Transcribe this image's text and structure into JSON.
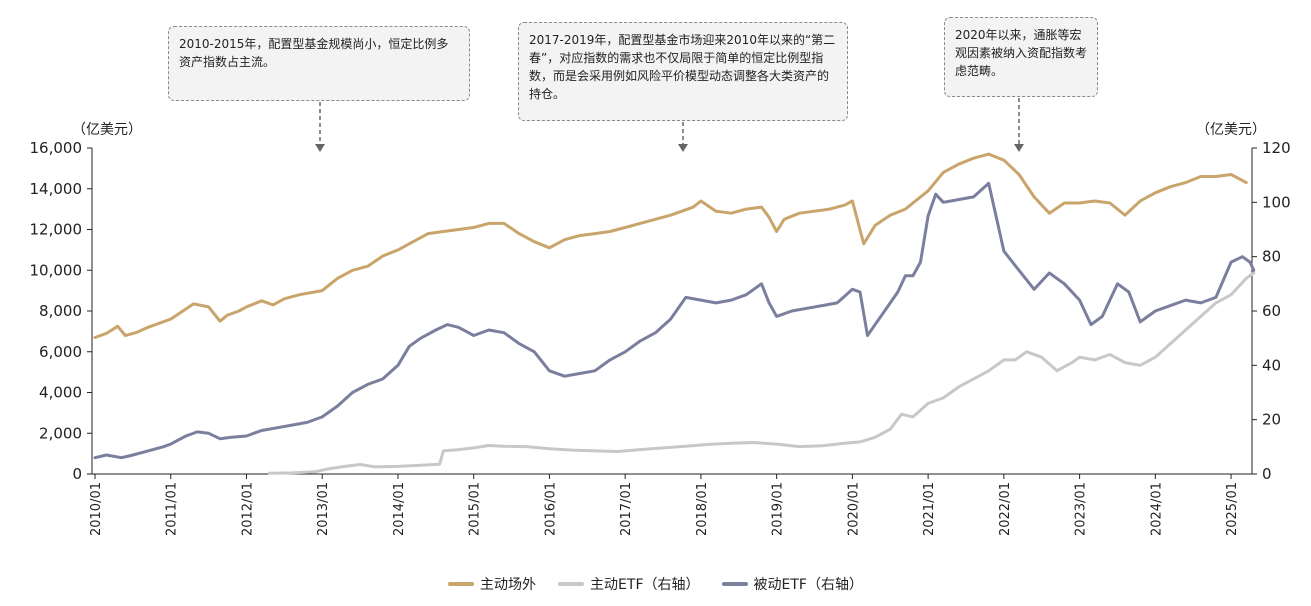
{
  "chart_data": {
    "type": "line",
    "left_axis_unit": "（亿美元）",
    "right_axis_unit": "（亿美元）",
    "left_ylim": [
      0,
      16000
    ],
    "left_ticks": [
      "0",
      "2,000",
      "4,000",
      "6,000",
      "8,000",
      "10,000",
      "12,000",
      "14,000",
      "16,000"
    ],
    "right_ylim": [
      0,
      120
    ],
    "right_ticks": [
      "0",
      "20",
      "40",
      "60",
      "80",
      "100",
      "120"
    ],
    "x_ticks": [
      "2010/01",
      "2011/01",
      "2012/01",
      "2013/01",
      "2014/01",
      "2015/01",
      "2016/01",
      "2017/01",
      "2018/01",
      "2019/01",
      "2020/01",
      "2021/01",
      "2022/01",
      "2023/01",
      "2024/01",
      "2025/01"
    ],
    "grid": false,
    "legend_position": "bottom",
    "series": [
      {
        "name": "主动场外",
        "axis": "left",
        "color": "#C9A46B",
        "points": [
          [
            2010.0,
            6700
          ],
          [
            2010.15,
            6900
          ],
          [
            2010.3,
            7250
          ],
          [
            2010.4,
            6800
          ],
          [
            2010.55,
            6950
          ],
          [
            2010.7,
            7200
          ],
          [
            2010.85,
            7400
          ],
          [
            2011.0,
            7600
          ],
          [
            2011.2,
            8100
          ],
          [
            2011.3,
            8350
          ],
          [
            2011.5,
            8200
          ],
          [
            2011.65,
            7500
          ],
          [
            2011.75,
            7800
          ],
          [
            2011.9,
            8000
          ],
          [
            2012.0,
            8200
          ],
          [
            2012.2,
            8500
          ],
          [
            2012.35,
            8300
          ],
          [
            2012.5,
            8600
          ],
          [
            2012.7,
            8800
          ],
          [
            2013.0,
            9000
          ],
          [
            2013.2,
            9600
          ],
          [
            2013.4,
            10000
          ],
          [
            2013.6,
            10200
          ],
          [
            2013.8,
            10700
          ],
          [
            2014.0,
            11000
          ],
          [
            2014.2,
            11400
          ],
          [
            2014.4,
            11800
          ],
          [
            2014.6,
            11900
          ],
          [
            2014.8,
            12000
          ],
          [
            2015.0,
            12100
          ],
          [
            2015.2,
            12300
          ],
          [
            2015.4,
            12300
          ],
          [
            2015.6,
            11800
          ],
          [
            2015.8,
            11400
          ],
          [
            2016.0,
            11100
          ],
          [
            2016.2,
            11500
          ],
          [
            2016.4,
            11700
          ],
          [
            2016.6,
            11800
          ],
          [
            2016.8,
            11900
          ],
          [
            2017.0,
            12100
          ],
          [
            2017.3,
            12400
          ],
          [
            2017.6,
            12700
          ],
          [
            2017.9,
            13100
          ],
          [
            2018.0,
            13400
          ],
          [
            2018.2,
            12900
          ],
          [
            2018.4,
            12800
          ],
          [
            2018.6,
            13000
          ],
          [
            2018.8,
            13100
          ],
          [
            2018.9,
            12600
          ],
          [
            2019.0,
            11900
          ],
          [
            2019.1,
            12500
          ],
          [
            2019.3,
            12800
          ],
          [
            2019.5,
            12900
          ],
          [
            2019.7,
            13000
          ],
          [
            2019.9,
            13200
          ],
          [
            2020.0,
            13400
          ],
          [
            2020.15,
            11300
          ],
          [
            2020.3,
            12200
          ],
          [
            2020.5,
            12700
          ],
          [
            2020.7,
            13000
          ],
          [
            2020.9,
            13600
          ],
          [
            2021.0,
            13900
          ],
          [
            2021.2,
            14800
          ],
          [
            2021.4,
            15200
          ],
          [
            2021.6,
            15500
          ],
          [
            2021.8,
            15700
          ],
          [
            2022.0,
            15400
          ],
          [
            2022.2,
            14700
          ],
          [
            2022.4,
            13600
          ],
          [
            2022.6,
            12800
          ],
          [
            2022.8,
            13300
          ],
          [
            2023.0,
            13300
          ],
          [
            2023.2,
            13400
          ],
          [
            2023.4,
            13300
          ],
          [
            2023.6,
            12700
          ],
          [
            2023.8,
            13400
          ],
          [
            2024.0,
            13800
          ],
          [
            2024.2,
            14100
          ],
          [
            2024.4,
            14300
          ],
          [
            2024.6,
            14600
          ],
          [
            2024.8,
            14600
          ],
          [
            2025.0,
            14700
          ],
          [
            2025.2,
            14300
          ]
        ]
      },
      {
        "name": "主动ETF（右轴）",
        "axis": "right",
        "color": "#C8C8C8",
        "points": [
          [
            2012.3,
            0.3
          ],
          [
            2012.6,
            0.4
          ],
          [
            2012.9,
            0.8
          ],
          [
            2013.1,
            2
          ],
          [
            2013.3,
            2.8
          ],
          [
            2013.5,
            3.5
          ],
          [
            2013.7,
            2.6
          ],
          [
            2014.0,
            2.8
          ],
          [
            2014.3,
            3.2
          ],
          [
            2014.55,
            3.6
          ],
          [
            2014.6,
            8.5
          ],
          [
            2014.8,
            9
          ],
          [
            2015.0,
            9.6
          ],
          [
            2015.2,
            10.5
          ],
          [
            2015.4,
            10.2
          ],
          [
            2015.7,
            10.1
          ],
          [
            2016.0,
            9.3
          ],
          [
            2016.3,
            8.8
          ],
          [
            2016.6,
            8.5
          ],
          [
            2016.9,
            8.3
          ],
          [
            2017.2,
            9
          ],
          [
            2017.5,
            9.6
          ],
          [
            2017.8,
            10.2
          ],
          [
            2018.1,
            10.9
          ],
          [
            2018.4,
            11.3
          ],
          [
            2018.7,
            11.6
          ],
          [
            2019.0,
            11
          ],
          [
            2019.3,
            10.1
          ],
          [
            2019.6,
            10.4
          ],
          [
            2019.9,
            11.3
          ],
          [
            2020.1,
            11.8
          ],
          [
            2020.3,
            13.5
          ],
          [
            2020.5,
            16.5
          ],
          [
            2020.65,
            22
          ],
          [
            2020.8,
            21
          ],
          [
            2021.0,
            26
          ],
          [
            2021.2,
            28
          ],
          [
            2021.4,
            32
          ],
          [
            2021.6,
            35
          ],
          [
            2021.8,
            38
          ],
          [
            2022.0,
            42
          ],
          [
            2022.15,
            42
          ],
          [
            2022.3,
            45
          ],
          [
            2022.5,
            43
          ],
          [
            2022.7,
            38
          ],
          [
            2022.9,
            41
          ],
          [
            2023.0,
            43
          ],
          [
            2023.2,
            42
          ],
          [
            2023.4,
            44
          ],
          [
            2023.6,
            41
          ],
          [
            2023.8,
            40
          ],
          [
            2024.0,
            43
          ],
          [
            2024.2,
            48
          ],
          [
            2024.4,
            53
          ],
          [
            2024.6,
            58
          ],
          [
            2024.8,
            63
          ],
          [
            2025.0,
            66
          ],
          [
            2025.2,
            72
          ],
          [
            2025.3,
            74
          ]
        ]
      },
      {
        "name": "被动ETF（右轴）",
        "axis": "right",
        "color": "#7B7F9E",
        "points": [
          [
            2010.0,
            6
          ],
          [
            2010.15,
            7
          ],
          [
            2010.35,
            6
          ],
          [
            2010.5,
            7
          ],
          [
            2010.7,
            8.5
          ],
          [
            2010.9,
            10
          ],
          [
            2011.0,
            11
          ],
          [
            2011.2,
            14
          ],
          [
            2011.35,
            15.5
          ],
          [
            2011.5,
            15
          ],
          [
            2011.65,
            13
          ],
          [
            2011.8,
            13.5
          ],
          [
            2012.0,
            14
          ],
          [
            2012.2,
            16
          ],
          [
            2012.4,
            17
          ],
          [
            2012.6,
            18
          ],
          [
            2012.8,
            19
          ],
          [
            2013.0,
            21
          ],
          [
            2013.2,
            25
          ],
          [
            2013.4,
            30
          ],
          [
            2013.6,
            33
          ],
          [
            2013.8,
            35
          ],
          [
            2014.0,
            40
          ],
          [
            2014.15,
            47
          ],
          [
            2014.3,
            50
          ],
          [
            2014.5,
            53
          ],
          [
            2014.65,
            55
          ],
          [
            2014.8,
            54
          ],
          [
            2015.0,
            51
          ],
          [
            2015.2,
            53
          ],
          [
            2015.4,
            52
          ],
          [
            2015.6,
            48
          ],
          [
            2015.8,
            45
          ],
          [
            2016.0,
            38
          ],
          [
            2016.2,
            36
          ],
          [
            2016.4,
            37
          ],
          [
            2016.6,
            38
          ],
          [
            2016.8,
            42
          ],
          [
            2017.0,
            45
          ],
          [
            2017.2,
            49
          ],
          [
            2017.4,
            52
          ],
          [
            2017.6,
            57
          ],
          [
            2017.8,
            65
          ],
          [
            2018.0,
            64
          ],
          [
            2018.2,
            63
          ],
          [
            2018.4,
            64
          ],
          [
            2018.6,
            66
          ],
          [
            2018.8,
            70
          ],
          [
            2018.9,
            63
          ],
          [
            2019.0,
            58
          ],
          [
            2019.2,
            60
          ],
          [
            2019.4,
            61
          ],
          [
            2019.6,
            62
          ],
          [
            2019.8,
            63
          ],
          [
            2020.0,
            68
          ],
          [
            2020.1,
            67
          ],
          [
            2020.2,
            51
          ],
          [
            2020.4,
            59
          ],
          [
            2020.6,
            67
          ],
          [
            2020.7,
            73
          ],
          [
            2020.8,
            73
          ],
          [
            2020.9,
            78
          ],
          [
            2021.0,
            95
          ],
          [
            2021.1,
            103
          ],
          [
            2021.2,
            100
          ],
          [
            2021.4,
            101
          ],
          [
            2021.6,
            102
          ],
          [
            2021.8,
            107
          ],
          [
            2022.0,
            82
          ],
          [
            2022.2,
            75
          ],
          [
            2022.4,
            68
          ],
          [
            2022.6,
            74
          ],
          [
            2022.8,
            70
          ],
          [
            2023.0,
            64
          ],
          [
            2023.15,
            55
          ],
          [
            2023.3,
            58
          ],
          [
            2023.5,
            70
          ],
          [
            2023.65,
            67
          ],
          [
            2023.8,
            56
          ],
          [
            2024.0,
            60
          ],
          [
            2024.2,
            62
          ],
          [
            2024.4,
            64
          ],
          [
            2024.6,
            63
          ],
          [
            2024.8,
            65
          ],
          [
            2025.0,
            78
          ],
          [
            2025.15,
            80
          ],
          [
            2025.25,
            78
          ],
          [
            2025.3,
            75
          ]
        ]
      }
    ]
  },
  "annotations": [
    {
      "text": "2010-2015年，配置型基金规模尚小，恒定比例多资产指数占主流。"
    },
    {
      "text": "2017-2019年，配置型基金市场迎来2010年以来的“第二春”，对应指数的需求也不仅局限于简单的恒定比例型指数，而是会采用例如风险平价模型动态调整各大类资产的持仓。"
    },
    {
      "text": "2020年以来，通胀等宏观因素被纳入资配指数考虑范畴。"
    }
  ]
}
